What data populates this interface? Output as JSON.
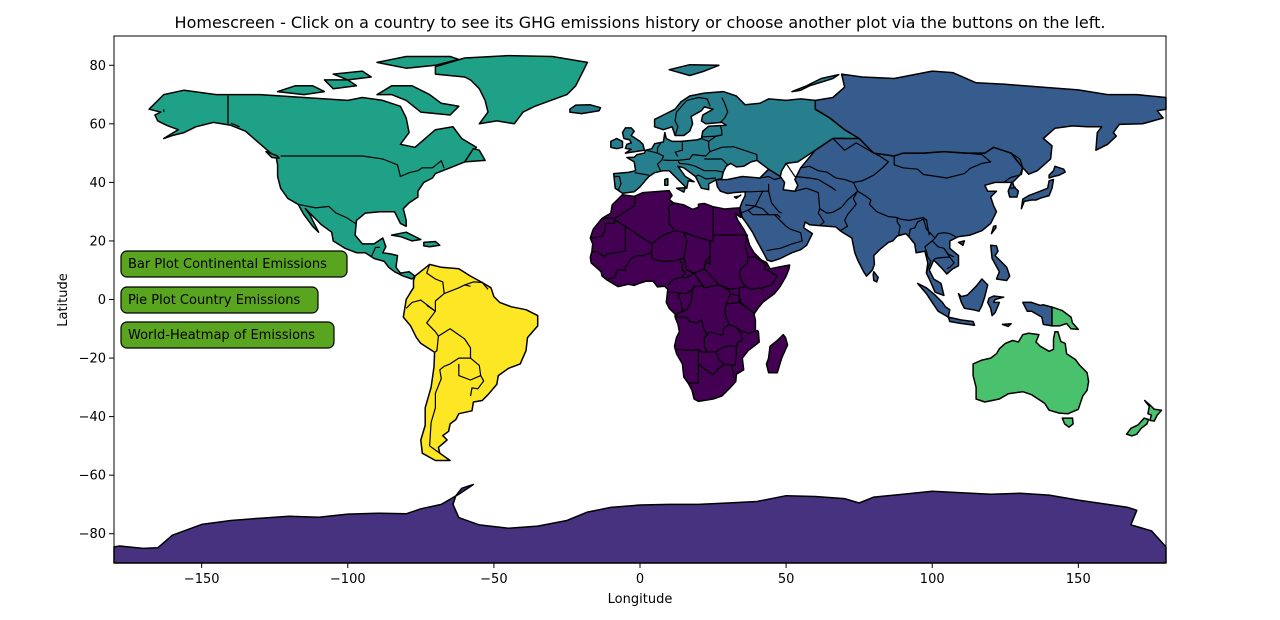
{
  "title": "Homescreen - Click on a country to see its GHG emissions history or choose another plot via the buttons on the left.",
  "chart_data": {
    "type": "map",
    "xlabel": "Longitude",
    "ylabel": "Latitude",
    "xlim": [
      -180,
      180
    ],
    "ylim": [
      -90,
      90
    ],
    "x_ticks": [
      -150,
      -100,
      -50,
      0,
      50,
      100,
      150
    ],
    "y_ticks": [
      80,
      60,
      40,
      20,
      0,
      -20,
      -40,
      -60,
      -80
    ],
    "x_tick_labels": [
      "−150",
      "−100",
      "−50",
      "0",
      "50",
      "100",
      "150"
    ],
    "y_tick_labels": [
      "80",
      "60",
      "40",
      "20",
      "0",
      "−20",
      "−40",
      "−60",
      "−80"
    ],
    "regions": [
      {
        "name": "Africa",
        "color": "#440154"
      },
      {
        "name": "Antarctica",
        "color": "#46327e"
      },
      {
        "name": "Asia",
        "color": "#365c8d"
      },
      {
        "name": "Europe",
        "color": "#277f8e"
      },
      {
        "name": "North America",
        "color": "#1fa187"
      },
      {
        "name": "Oceania",
        "color": "#4ac16d"
      },
      {
        "name": "South America",
        "color": "#fde725"
      }
    ]
  },
  "buttons": [
    {
      "label": "Bar Plot Continental Emissions"
    },
    {
      "label": "Pie Plot Country Emissions"
    },
    {
      "label": "World-Heatmap of Emissions"
    }
  ],
  "button_color": "#5aa51f"
}
